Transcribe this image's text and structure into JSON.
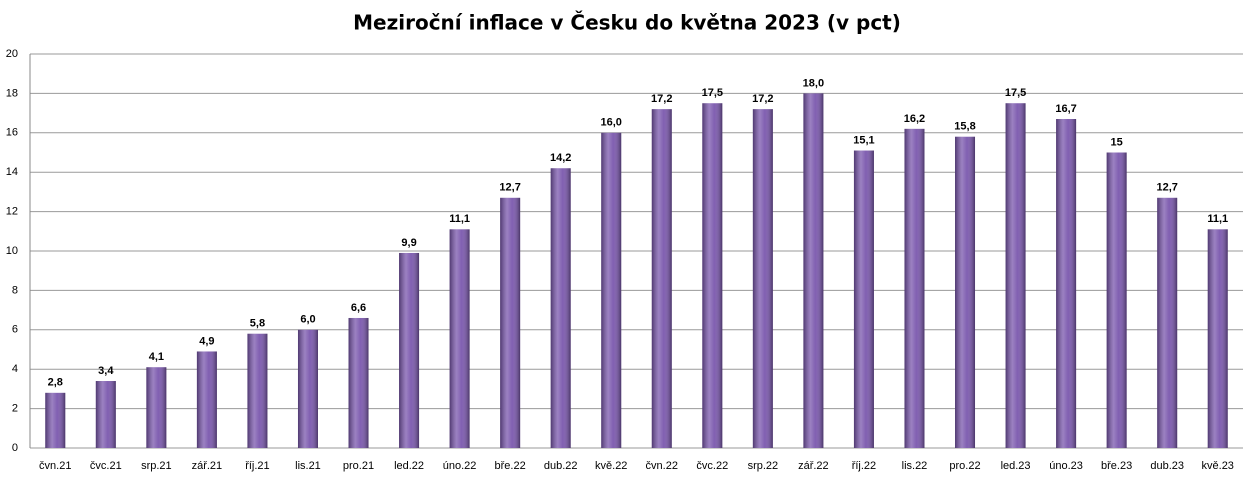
{
  "chart_data": {
    "type": "bar",
    "title": "Meziroční inflace v Česku do května 2023 (v pct)",
    "categories": [
      "čvn.21",
      "čvc.21",
      "srp.21",
      "zář.21",
      "říj.21",
      "lis.21",
      "pro.21",
      "led.22",
      "úno.22",
      "bře.22",
      "dub.22",
      "kvě.22",
      "čvn.22",
      "čvc.22",
      "srp.22",
      "zář.22",
      "říj.22",
      "lis.22",
      "pro.22",
      "led.23",
      "úno.23",
      "bře.23",
      "dub.23",
      "kvě.23"
    ],
    "values": [
      2.8,
      3.4,
      4.1,
      4.9,
      5.8,
      6.0,
      6.6,
      9.9,
      11.1,
      12.7,
      14.2,
      16.0,
      17.2,
      17.5,
      17.2,
      18.0,
      15.1,
      16.2,
      15.8,
      17.5,
      16.7,
      15,
      12.7,
      11.1
    ],
    "value_labels": [
      "2,8",
      "3,4",
      "4,1",
      "4,9",
      "5,8",
      "6,0",
      "6,6",
      "9,9",
      "11,1",
      "12,7",
      "14,2",
      "16,0",
      "17,2",
      "17,5",
      "17,2",
      "18,0",
      "15,1",
      "16,2",
      "15,8",
      "17,5",
      "16,7",
      "15",
      "12,7",
      "11,1"
    ],
    "color": "#7a57ad",
    "ylim": [
      0,
      20
    ],
    "yticks": [
      0,
      2,
      4,
      6,
      8,
      10,
      12,
      14,
      16,
      18,
      20
    ],
    "grid": true
  }
}
